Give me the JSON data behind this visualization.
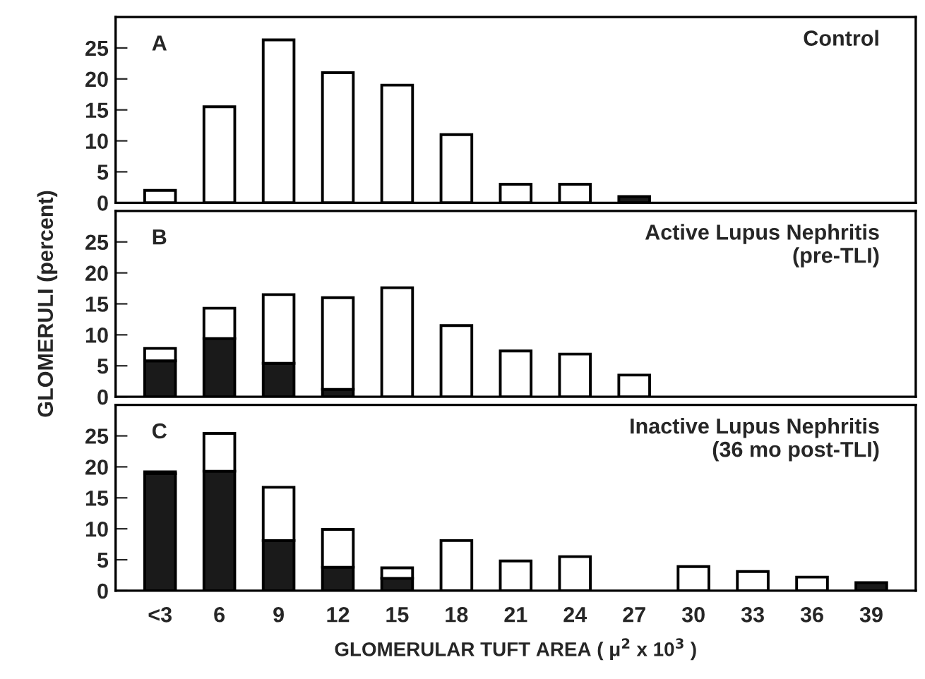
{
  "chart_data": [
    {
      "type": "bar",
      "stacked": true,
      "title": "Control",
      "annotations": [
        "A"
      ],
      "categories": [
        null,
        null,
        null,
        null,
        null,
        null,
        null,
        null,
        null,
        null,
        null,
        null,
        null
      ],
      "ylim": [
        0,
        30
      ],
      "yticks": [
        0,
        5,
        10,
        15,
        20,
        25
      ],
      "tick_labels": "y",
      "grid": false,
      "legend": false,
      "series": [
        {
          "color": "#1a1a1a",
          "values": [
            null,
            null,
            null,
            null,
            null,
            null,
            null,
            null,
            1,
            null,
            null,
            null,
            null
          ]
        },
        {
          "color": "#ffffff",
          "values": [
            2,
            15.5,
            26.3,
            21,
            19,
            11,
            3,
            3,
            null,
            null,
            null,
            null,
            null
          ]
        }
      ]
    },
    {
      "type": "bar",
      "stacked": true,
      "title": "Active Lupus Nephritis\n(pre-TLI)",
      "annotations": [
        "B"
      ],
      "ylabel": "GLOMERULI (percent)",
      "categories": [
        null,
        null,
        null,
        null,
        null,
        null,
        null,
        null,
        null,
        null,
        null,
        null,
        null
      ],
      "ylim": [
        0,
        30
      ],
      "yticks": [
        0,
        5,
        10,
        15,
        20,
        25
      ],
      "tick_labels": "y",
      "grid": false,
      "legend": false,
      "series": [
        {
          "color": "#1a1a1a",
          "values": [
            5.8,
            9.4,
            5.4,
            1.2,
            null,
            null,
            null,
            null,
            null,
            null,
            null,
            null,
            null
          ]
        },
        {
          "color": "#ffffff",
          "values": [
            2.0,
            4.9,
            11.1,
            14.8,
            17.6,
            11.5,
            7.4,
            6.9,
            3.5,
            null,
            null,
            null,
            null
          ]
        }
      ]
    },
    {
      "type": "bar",
      "stacked": true,
      "title": "Inactive Lupus Nephritis\n(36 mo post-TLI)",
      "annotations": [
        "C"
      ],
      "xlabel": "GLOMERULAR TUFT AREA ( μ$^{2}$ x 10$^{3}$ )",
      "categories": [
        "<3",
        "6",
        "9",
        "12",
        "15",
        "18",
        "21",
        "24",
        "27",
        "30",
        "33",
        "36",
        "39"
      ],
      "ylim": [
        0,
        30
      ],
      "yticks": [
        0,
        5,
        10,
        15,
        20,
        25
      ],
      "grid": false,
      "legend": false,
      "series": [
        {
          "color": "#1a1a1a",
          "values": [
            18.9,
            19.3,
            8.1,
            3.8,
            2.0,
            null,
            null,
            null,
            null,
            null,
            null,
            null,
            1.3
          ]
        },
        {
          "color": "#ffffff",
          "values": [
            0.3,
            6.1,
            8.6,
            6.1,
            1.7,
            8.1,
            4.8,
            5.5,
            null,
            3.9,
            3.1,
            2.2,
            null
          ]
        }
      ]
    }
  ]
}
